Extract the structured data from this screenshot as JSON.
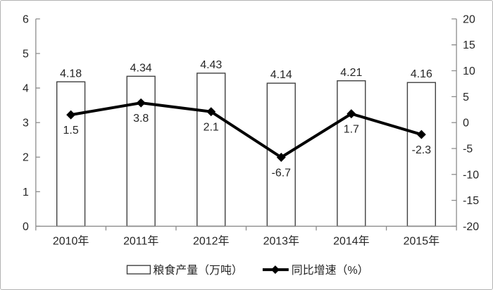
{
  "chart_data": {
    "type": "combo-bar-line",
    "title": "",
    "categories": [
      "2010年",
      "2011年",
      "2012年",
      "2013年",
      "2014年",
      "2015年"
    ],
    "series": [
      {
        "name": "粮食产量（万吨）",
        "type": "bar",
        "axis": "left",
        "values": [
          4.18,
          4.34,
          4.43,
          4.14,
          4.21,
          4.16
        ],
        "data_labels": [
          "4.18",
          "4.34",
          "4.43",
          "4.14",
          "4.21",
          "4.16"
        ]
      },
      {
        "name": "同比增速（%）",
        "type": "line",
        "axis": "right",
        "values": [
          1.5,
          3.8,
          2.1,
          -6.7,
          1.7,
          -2.3
        ],
        "data_labels": [
          "1.5",
          "3.8",
          "2.1",
          "-6.7",
          "1.7",
          "-2.3"
        ]
      }
    ],
    "left_axis": {
      "min": 0,
      "max": 6,
      "tick_labels": [
        "0",
        "1",
        "2",
        "3",
        "4",
        "5",
        "6"
      ]
    },
    "right_axis": {
      "min": -20,
      "max": 20,
      "tick_labels": [
        "-20",
        "-15",
        "-10",
        "-5",
        "0",
        "5",
        "10",
        "15",
        "20"
      ]
    },
    "legend": {
      "position": "bottom",
      "entries": [
        "粮食产量（万吨）",
        "同比增速（%）"
      ]
    },
    "grid": false,
    "colors": {
      "bar_fill": "#ffffff",
      "bar_border": "#404040",
      "line": "#000000",
      "marker": "#000000",
      "axis_line": "#8c8c8c",
      "label_text": "#262626"
    }
  }
}
